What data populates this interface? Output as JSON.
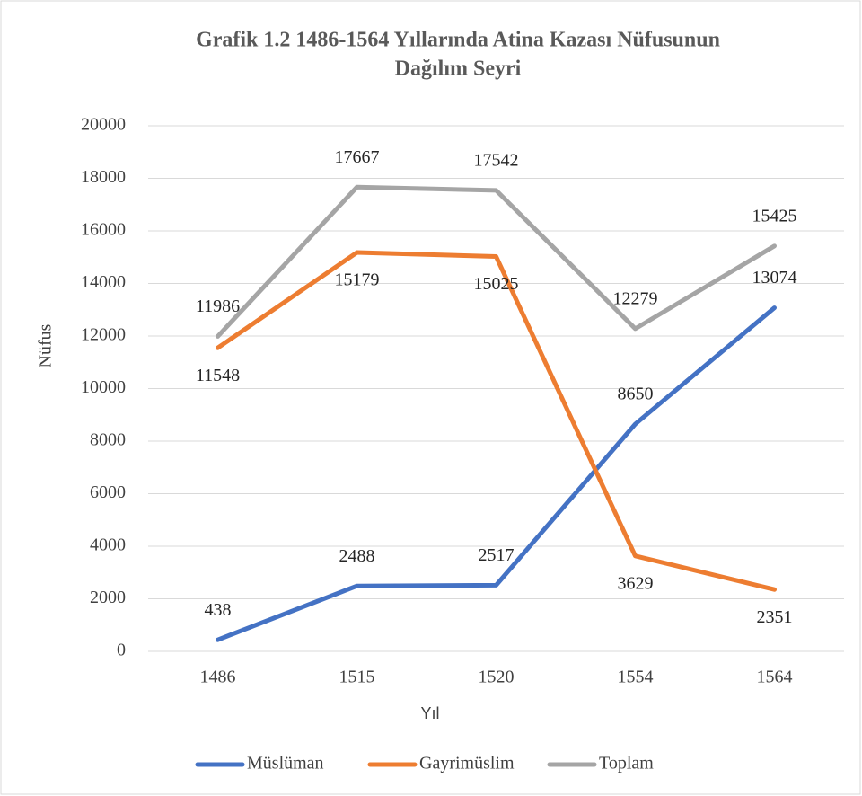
{
  "chart_data": {
    "type": "line",
    "title": [
      "Grafik 1.2 1486-1564 Yıllarında Atina Kazası Nüfusunun",
      "Dağılım Seyri"
    ],
    "x_label": "Yıl",
    "y_label": "Nüfus",
    "categories": [
      "1486",
      "1515",
      "1520",
      "1554",
      "1564"
    ],
    "series": [
      {
        "name": "Müslüman",
        "color": "#4472c4",
        "values": [
          438,
          2488,
          2517,
          8650,
          13074
        ]
      },
      {
        "name": "Gayrimüslim",
        "color": "#ed7d31",
        "values": [
          11548,
          15179,
          15025,
          3629,
          2351
        ]
      },
      {
        "name": "Toplam",
        "color": "#a5a5a5",
        "values": [
          11986,
          17667,
          17542,
          12279,
          15425
        ]
      }
    ],
    "ylim": [
      0,
      20000
    ],
    "yticks": [
      0,
      2000,
      4000,
      6000,
      8000,
      10000,
      12000,
      14000,
      16000,
      18000,
      20000
    ],
    "grid": true,
    "legend": "bottom"
  }
}
